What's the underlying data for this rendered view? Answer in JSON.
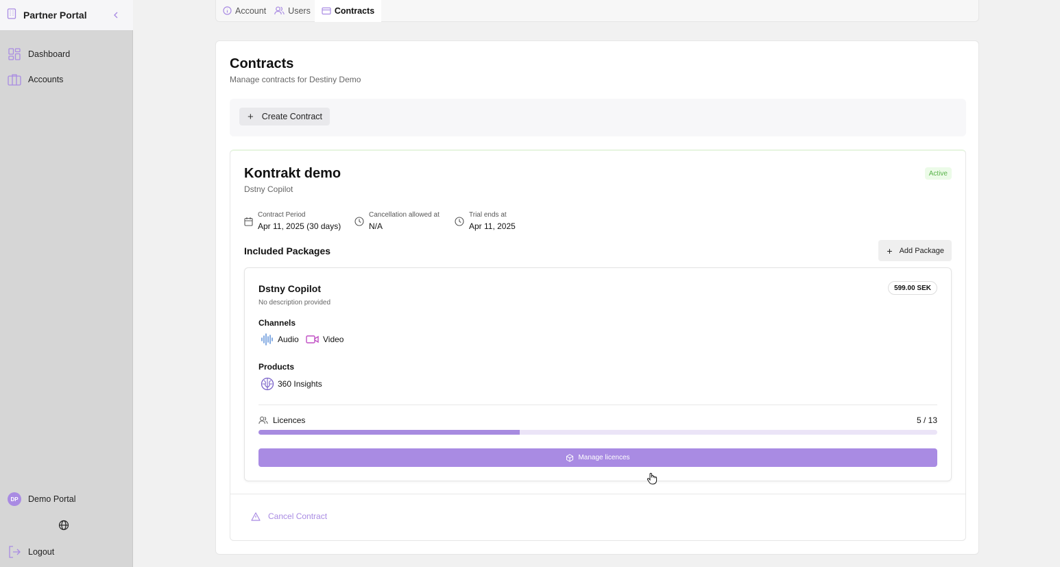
{
  "sidebar": {
    "brand": "Partner Portal",
    "brand_icon": "building-icon",
    "items": [
      {
        "label": "Dashboard",
        "icon": "dashboard-icon"
      },
      {
        "label": "Accounts",
        "icon": "briefcase-icon"
      }
    ],
    "user": {
      "initials": "DP",
      "name": "Demo Portal"
    },
    "logout_label": "Logout"
  },
  "tabs": [
    {
      "label": "Account",
      "icon": "info-icon",
      "active": false
    },
    {
      "label": "Users",
      "icon": "users-icon",
      "active": false
    },
    {
      "label": "Contracts",
      "icon": "card-icon",
      "active": true
    }
  ],
  "page": {
    "title": "Contracts",
    "subtitle": "Manage contracts for Destiny Demo",
    "create_label": "Create Contract"
  },
  "contract": {
    "name": "Kontrakt demo",
    "product": "Dstny Copilot",
    "status": "Active",
    "meta": [
      {
        "label": "Contract Period",
        "value": "Apr 11, 2025 (30 days)",
        "icon": "calendar-icon"
      },
      {
        "label": "Cancellation allowed at",
        "value": "N/A",
        "icon": "clock-icon"
      },
      {
        "label": "Trial ends at",
        "value": "Apr 11, 2025",
        "icon": "clock-icon"
      }
    ],
    "packages_heading": "Included Packages",
    "add_package_label": "Add Package",
    "package": {
      "name": "Dstny Copilot",
      "description": "No description provided",
      "price": "599.00 SEK",
      "channels_label": "Channels",
      "channels": [
        {
          "label": "Audio",
          "icon": "audio-waveform-icon"
        },
        {
          "label": "Video",
          "icon": "video-camera-icon"
        }
      ],
      "products_label": "Products",
      "products": [
        {
          "label": "360 Insights",
          "icon": "brain-icon"
        }
      ],
      "licences_label": "Licences",
      "licences_used": 5,
      "licences_total": 13,
      "licences_text": "5 / 13",
      "manage_label": "Manage licences"
    },
    "cancel_label": "Cancel Contract"
  },
  "colors": {
    "accent": "#a98be3",
    "status_bg": "#ecfbe8",
    "status_text": "#59b34a"
  }
}
